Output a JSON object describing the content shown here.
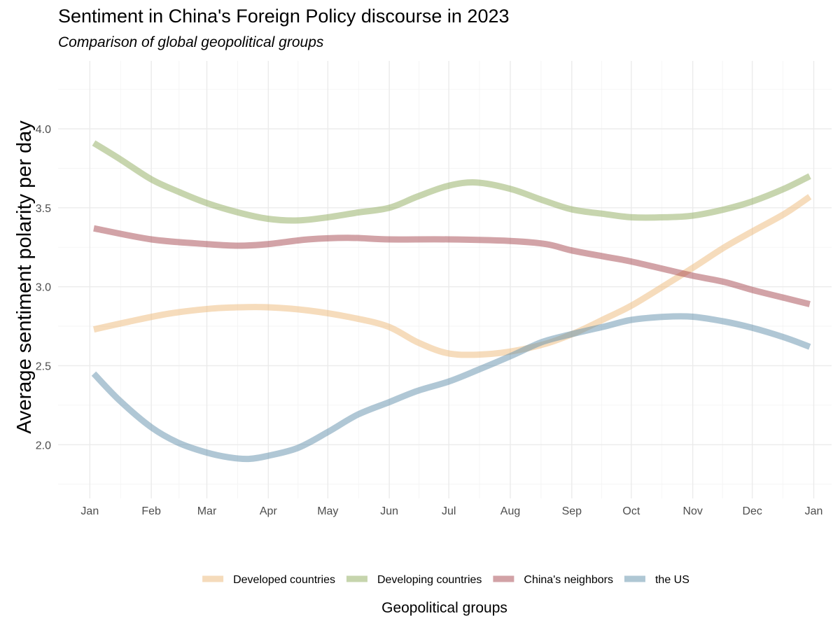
{
  "chart_data": {
    "type": "line",
    "title": "Sentiment in China's Foreign Policy discourse in 2023",
    "subtitle": "Comparison of global geopolitical groups",
    "xlabel": "Geopolitical groups",
    "ylabel": "Average sentiment polarity per day",
    "x_ticks": [
      {
        "label": "Jan",
        "value": 0
      },
      {
        "label": "Feb",
        "value": 31
      },
      {
        "label": "Mar",
        "value": 59
      },
      {
        "label": "Apr",
        "value": 90
      },
      {
        "label": "May",
        "value": 120
      },
      {
        "label": "Jun",
        "value": 151
      },
      {
        "label": "Jul",
        "value": 181
      },
      {
        "label": "Aug",
        "value": 212
      },
      {
        "label": "Sep",
        "value": 243
      },
      {
        "label": "Oct",
        "value": 273
      },
      {
        "label": "Nov",
        "value": 304
      },
      {
        "label": "Dec",
        "value": 334
      },
      {
        "label": "Jan",
        "value": 365
      }
    ],
    "xlim": [
      -16,
      374
    ],
    "ylim": [
      1.66,
      4.43
    ],
    "y_ticks": [
      2.0,
      2.5,
      3.0,
      3.5,
      4.0
    ],
    "y_tick_labels": [
      "2.0",
      "2.5",
      "3.0",
      "3.5",
      "4.0"
    ],
    "grid": true,
    "legend_position": "bottom",
    "series": [
      {
        "name": "Developed countries",
        "color": "#edb97a",
        "points": [
          [
            2,
            2.73
          ],
          [
            20,
            2.78
          ],
          [
            40,
            2.83
          ],
          [
            60,
            2.86
          ],
          [
            75,
            2.87
          ],
          [
            90,
            2.87
          ],
          [
            110,
            2.85
          ],
          [
            130,
            2.81
          ],
          [
            150,
            2.75
          ],
          [
            165,
            2.65
          ],
          [
            180,
            2.58
          ],
          [
            195,
            2.57
          ],
          [
            212,
            2.59
          ],
          [
            230,
            2.64
          ],
          [
            245,
            2.71
          ],
          [
            260,
            2.8
          ],
          [
            273,
            2.88
          ],
          [
            290,
            3.01
          ],
          [
            304,
            3.12
          ],
          [
            320,
            3.25
          ],
          [
            334,
            3.35
          ],
          [
            350,
            3.46
          ],
          [
            363,
            3.57
          ]
        ]
      },
      {
        "name": "Developing countries",
        "color": "#8fac5e",
        "points": [
          [
            2,
            3.91
          ],
          [
            15,
            3.81
          ],
          [
            31,
            3.68
          ],
          [
            45,
            3.6
          ],
          [
            59,
            3.53
          ],
          [
            75,
            3.47
          ],
          [
            90,
            3.43
          ],
          [
            105,
            3.42
          ],
          [
            120,
            3.44
          ],
          [
            135,
            3.47
          ],
          [
            151,
            3.5
          ],
          [
            165,
            3.57
          ],
          [
            181,
            3.64
          ],
          [
            195,
            3.66
          ],
          [
            212,
            3.62
          ],
          [
            228,
            3.55
          ],
          [
            243,
            3.49
          ],
          [
            260,
            3.46
          ],
          [
            273,
            3.44
          ],
          [
            290,
            3.44
          ],
          [
            304,
            3.45
          ],
          [
            320,
            3.49
          ],
          [
            334,
            3.54
          ],
          [
            350,
            3.62
          ],
          [
            363,
            3.7
          ]
        ]
      },
      {
        "name": "China's neighbors",
        "color": "#a64850",
        "points": [
          [
            2,
            3.37
          ],
          [
            31,
            3.3
          ],
          [
            59,
            3.27
          ],
          [
            75,
            3.26
          ],
          [
            90,
            3.27
          ],
          [
            110,
            3.3
          ],
          [
            130,
            3.31
          ],
          [
            151,
            3.3
          ],
          [
            181,
            3.3
          ],
          [
            212,
            3.29
          ],
          [
            230,
            3.27
          ],
          [
            243,
            3.23
          ],
          [
            260,
            3.19
          ],
          [
            273,
            3.16
          ],
          [
            290,
            3.11
          ],
          [
            304,
            3.07
          ],
          [
            320,
            3.03
          ],
          [
            334,
            2.98
          ],
          [
            350,
            2.93
          ],
          [
            363,
            2.89
          ]
        ]
      },
      {
        "name": "the US",
        "color": "#6290ab",
        "points": [
          [
            2,
            2.45
          ],
          [
            15,
            2.28
          ],
          [
            31,
            2.11
          ],
          [
            45,
            2.01
          ],
          [
            59,
            1.95
          ],
          [
            70,
            1.92
          ],
          [
            80,
            1.91
          ],
          [
            90,
            1.93
          ],
          [
            105,
            1.98
          ],
          [
            120,
            2.08
          ],
          [
            135,
            2.19
          ],
          [
            151,
            2.27
          ],
          [
            165,
            2.34
          ],
          [
            181,
            2.4
          ],
          [
            195,
            2.47
          ],
          [
            212,
            2.56
          ],
          [
            228,
            2.65
          ],
          [
            243,
            2.7
          ],
          [
            260,
            2.75
          ],
          [
            273,
            2.79
          ],
          [
            290,
            2.81
          ],
          [
            304,
            2.81
          ],
          [
            320,
            2.78
          ],
          [
            334,
            2.74
          ],
          [
            350,
            2.68
          ],
          [
            363,
            2.62
          ]
        ]
      }
    ]
  }
}
